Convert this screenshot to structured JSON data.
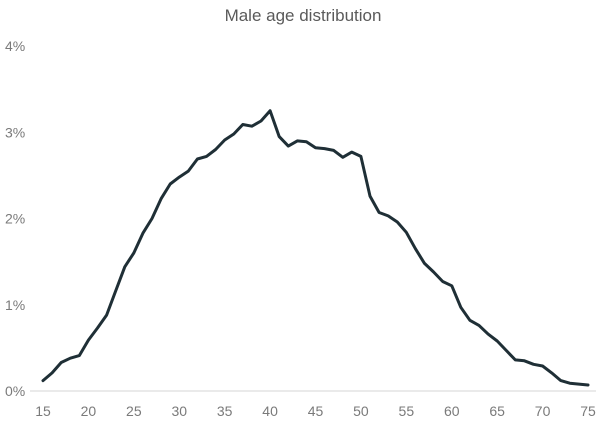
{
  "chart_data": {
    "type": "line",
    "title": "Male age distribution",
    "xlabel": "",
    "ylabel": "",
    "xlim": [
      15,
      75
    ],
    "ylim": [
      0,
      4
    ],
    "grid": false,
    "line_color": "#1f2f36",
    "x_ticks": [
      15,
      20,
      25,
      30,
      35,
      40,
      45,
      50,
      55,
      60,
      65,
      70,
      75
    ],
    "y_ticks": [
      0,
      1,
      2,
      3,
      4
    ],
    "y_tick_labels": [
      "0%",
      "1%",
      "2%",
      "3%",
      "4%"
    ],
    "series": [
      {
        "x": [
          15,
          16,
          17,
          18,
          19,
          20,
          21,
          22,
          23,
          24,
          25,
          26,
          27,
          28,
          29,
          30,
          31,
          32,
          33,
          34,
          35,
          36,
          37,
          38,
          39,
          40,
          41,
          42,
          43,
          44,
          45,
          46,
          47,
          48,
          49,
          50,
          51,
          52,
          53,
          54,
          55,
          56,
          57,
          58,
          59,
          60,
          61,
          62,
          63,
          64,
          65,
          66,
          67,
          68,
          69,
          70,
          71,
          72,
          73,
          74,
          75
        ],
        "values": [
          0.12,
          0.21,
          0.33,
          0.38,
          0.41,
          0.59,
          0.73,
          0.88,
          1.16,
          1.44,
          1.6,
          1.83,
          2.0,
          2.23,
          2.4,
          2.48,
          2.55,
          2.69,
          2.72,
          2.8,
          2.91,
          2.98,
          3.09,
          3.07,
          3.13,
          3.25,
          2.95,
          2.84,
          2.9,
          2.89,
          2.82,
          2.81,
          2.79,
          2.71,
          2.77,
          2.72,
          2.26,
          2.07,
          2.03,
          1.96,
          1.84,
          1.65,
          1.48,
          1.38,
          1.27,
          1.22,
          0.97,
          0.82,
          0.76,
          0.66,
          0.58,
          0.47,
          0.36,
          0.35,
          0.31,
          0.29,
          0.21,
          0.12,
          0.09,
          0.08,
          0.07
        ]
      }
    ]
  }
}
